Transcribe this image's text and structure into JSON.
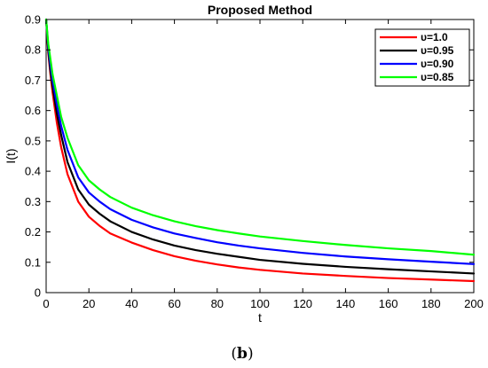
{
  "caption": {
    "open": "(",
    "letter": "b",
    "close": ")"
  },
  "chart_data": {
    "type": "line",
    "title": "Proposed Method",
    "xlabel": "t",
    "ylabel": "I(t)",
    "xlim": [
      0,
      200
    ],
    "ylim": [
      0,
      0.9
    ],
    "xticks": [
      0,
      20,
      40,
      60,
      80,
      100,
      120,
      140,
      160,
      180,
      200
    ],
    "yticks": [
      0,
      0.1,
      0.2,
      0.3,
      0.4,
      0.5,
      0.6,
      0.7,
      0.8,
      0.9
    ],
    "grid": false,
    "legend_position": "top-right",
    "series": [
      {
        "name": "υ=1.0",
        "color": "#ff0000",
        "x": [
          0,
          1,
          2,
          3,
          5,
          7,
          10,
          15,
          20,
          25,
          30,
          40,
          50,
          60,
          70,
          80,
          90,
          100,
          120,
          140,
          160,
          180,
          200
        ],
        "y": [
          0.9,
          0.79,
          0.72,
          0.66,
          0.56,
          0.48,
          0.39,
          0.3,
          0.25,
          0.22,
          0.195,
          0.165,
          0.14,
          0.12,
          0.105,
          0.093,
          0.083,
          0.075,
          0.063,
          0.055,
          0.048,
          0.043,
          0.038
        ]
      },
      {
        "name": "υ=0.95",
        "color": "#000000",
        "x": [
          0,
          1,
          2,
          3,
          5,
          7,
          10,
          15,
          20,
          25,
          30,
          40,
          50,
          60,
          70,
          80,
          90,
          100,
          120,
          140,
          160,
          180,
          200
        ],
        "y": [
          0.9,
          0.8,
          0.73,
          0.68,
          0.59,
          0.52,
          0.43,
          0.34,
          0.29,
          0.26,
          0.235,
          0.2,
          0.175,
          0.155,
          0.14,
          0.128,
          0.118,
          0.108,
          0.095,
          0.085,
          0.077,
          0.07,
          0.063
        ]
      },
      {
        "name": "υ=0.90",
        "color": "#0000ff",
        "x": [
          0,
          1,
          2,
          3,
          5,
          7,
          10,
          15,
          20,
          25,
          30,
          40,
          50,
          60,
          70,
          80,
          90,
          100,
          120,
          140,
          160,
          180,
          200
        ],
        "y": [
          0.9,
          0.81,
          0.75,
          0.7,
          0.62,
          0.55,
          0.47,
          0.38,
          0.33,
          0.3,
          0.275,
          0.24,
          0.215,
          0.195,
          0.18,
          0.166,
          0.155,
          0.146,
          0.131,
          0.119,
          0.11,
          0.102,
          0.094
        ]
      },
      {
        "name": "υ=0.85",
        "color": "#00ff00",
        "x": [
          0,
          1,
          2,
          3,
          5,
          7,
          10,
          15,
          20,
          25,
          30,
          40,
          50,
          60,
          70,
          80,
          90,
          100,
          120,
          140,
          160,
          180,
          200
        ],
        "y": [
          0.9,
          0.82,
          0.77,
          0.72,
          0.65,
          0.58,
          0.51,
          0.42,
          0.37,
          0.34,
          0.315,
          0.28,
          0.255,
          0.235,
          0.219,
          0.206,
          0.195,
          0.185,
          0.17,
          0.157,
          0.146,
          0.137,
          0.125
        ]
      }
    ]
  }
}
